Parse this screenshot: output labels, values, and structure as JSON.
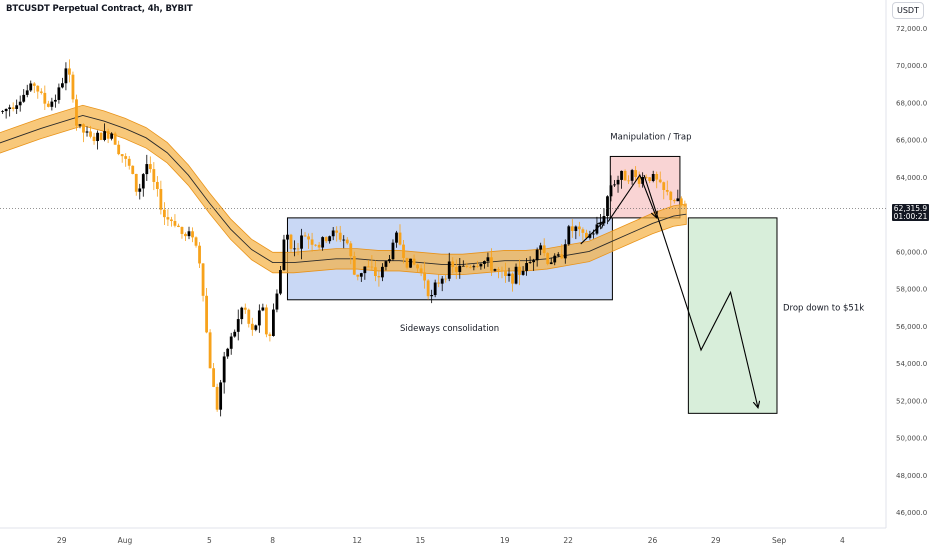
{
  "title": "BTCUSDT Perpetual Contract, 4h, BYBIT",
  "currency_label": "USDT",
  "last_price_label": "62,315.9",
  "countdown_label": "01:00:21",
  "colors": {
    "candle_up": "#000000",
    "candle_down": "#f7a21b",
    "band_fill": "#f5b042",
    "band_edge": "#e8931a",
    "range_box": "#c9d8f5",
    "trap_box": "#f9d4d4",
    "target_box": "#d8eeda",
    "axis_text": "#4a4a4a"
  },
  "chart_data": {
    "type": "candlestick",
    "ylim": [
      45500,
      73000
    ],
    "y_ticks": [
      46000,
      48000,
      50000,
      52000,
      54000,
      56000,
      58000,
      60000,
      62000,
      64000,
      66000,
      68000,
      70000,
      72000
    ],
    "y_tick_labels": [
      "46,000.0",
      "48,000.0",
      "50,000.0",
      "52,000.0",
      "54,000.0",
      "56,000.0",
      "58,000.0",
      "60,000.0",
      "62,000.0",
      "64,000.0",
      "66,000.0",
      "68,000.0",
      "70,000.0",
      "72,000.0"
    ],
    "x_ticks": [
      {
        "label": "29",
        "day": -3
      },
      {
        "label": "Aug",
        "day": 0
      },
      {
        "label": "5",
        "day": 4
      },
      {
        "label": "8",
        "day": 7
      },
      {
        "label": "12",
        "day": 11
      },
      {
        "label": "15",
        "day": 14
      },
      {
        "label": "19",
        "day": 18
      },
      {
        "label": "22",
        "day": 21
      },
      {
        "label": "26",
        "day": 25
      },
      {
        "label": "29",
        "day": 28
      },
      {
        "label": "Sep",
        "day": 31
      },
      {
        "label": "4",
        "day": 34
      }
    ],
    "last_price": 62315.9,
    "anchors": [
      {
        "day": -5.8,
        "price": 67500
      },
      {
        "day": -5.0,
        "price": 68200
      },
      {
        "day": -4.3,
        "price": 69000
      },
      {
        "day": -3.7,
        "price": 67800
      },
      {
        "day": -3.2,
        "price": 68400
      },
      {
        "day": -2.8,
        "price": 69700
      },
      {
        "day": -2.5,
        "price": 68800
      },
      {
        "day": -2.3,
        "price": 66800
      },
      {
        "day": -1.6,
        "price": 66000
      },
      {
        "day": -0.6,
        "price": 66400
      },
      {
        "day": -0.3,
        "price": 65500
      },
      {
        "day": 0.3,
        "price": 64300
      },
      {
        "day": 0.6,
        "price": 63000
      },
      {
        "day": 1.0,
        "price": 64800
      },
      {
        "day": 1.4,
        "price": 63500
      },
      {
        "day": 1.9,
        "price": 61800
      },
      {
        "day": 2.4,
        "price": 61600
      },
      {
        "day": 2.8,
        "price": 60700
      },
      {
        "day": 3.2,
        "price": 61000
      },
      {
        "day": 3.6,
        "price": 59200
      },
      {
        "day": 3.95,
        "price": 54500
      },
      {
        "day": 4.15,
        "price": 53000
      },
      {
        "day": 4.35,
        "price": 51500
      },
      {
        "day": 4.6,
        "price": 53500
      },
      {
        "day": 4.9,
        "price": 55000
      },
      {
        "day": 5.3,
        "price": 56000
      },
      {
        "day": 5.6,
        "price": 57200
      },
      {
        "day": 6.0,
        "price": 55500
      },
      {
        "day": 6.5,
        "price": 57000
      },
      {
        "day": 6.8,
        "price": 55000
      },
      {
        "day": 7.1,
        "price": 57300
      },
      {
        "day": 7.4,
        "price": 59200
      },
      {
        "day": 7.6,
        "price": 61200
      },
      {
        "day": 8.0,
        "price": 60000
      },
      {
        "day": 8.5,
        "price": 60900
      },
      {
        "day": 9.2,
        "price": 60300
      },
      {
        "day": 9.8,
        "price": 61000
      },
      {
        "day": 10.5,
        "price": 60600
      },
      {
        "day": 10.9,
        "price": 58600
      },
      {
        "day": 11.4,
        "price": 59200
      },
      {
        "day": 12.0,
        "price": 58600
      },
      {
        "day": 12.5,
        "price": 59700
      },
      {
        "day": 12.9,
        "price": 60900
      },
      {
        "day": 13.3,
        "price": 59500
      },
      {
        "day": 13.8,
        "price": 59200
      },
      {
        "day": 14.2,
        "price": 58600
      },
      {
        "day": 14.5,
        "price": 57400
      },
      {
        "day": 14.8,
        "price": 58300
      },
      {
        "day": 15.3,
        "price": 59100
      },
      {
        "day": 15.8,
        "price": 59000
      },
      {
        "day": 16.4,
        "price": 59300
      },
      {
        "day": 17.0,
        "price": 59500
      },
      {
        "day": 17.6,
        "price": 59000
      },
      {
        "day": 18.0,
        "price": 58500
      },
      {
        "day": 18.6,
        "price": 58800
      },
      {
        "day": 19.3,
        "price": 59500
      },
      {
        "day": 19.6,
        "price": 60700
      },
      {
        "day": 20.0,
        "price": 59500
      },
      {
        "day": 20.6,
        "price": 59600
      },
      {
        "day": 21.0,
        "price": 61100
      },
      {
        "day": 21.4,
        "price": 61200
      },
      {
        "day": 21.7,
        "price": 60700
      },
      {
        "day": 22.1,
        "price": 60900
      },
      {
        "day": 22.6,
        "price": 61600
      },
      {
        "day": 23.0,
        "price": 63600
      },
      {
        "day": 23.5,
        "price": 64000
      },
      {
        "day": 24.0,
        "price": 64200
      },
      {
        "day": 24.3,
        "price": 63800
      },
      {
        "day": 24.7,
        "price": 64100
      },
      {
        "day": 25.1,
        "price": 63900
      },
      {
        "day": 25.5,
        "price": 63200
      },
      {
        "day": 25.9,
        "price": 62900
      },
      {
        "day": 26.3,
        "price": 62500
      },
      {
        "day": 26.6,
        "price": 62316
      }
    ],
    "moving_average": [
      {
        "day": -6,
        "price": 65800
      },
      {
        "day": -4,
        "price": 66600
      },
      {
        "day": -2,
        "price": 67300
      },
      {
        "day": -1,
        "price": 67000
      },
      {
        "day": 0,
        "price": 66600
      },
      {
        "day": 1,
        "price": 66100
      },
      {
        "day": 2,
        "price": 65300
      },
      {
        "day": 3,
        "price": 64100
      },
      {
        "day": 4,
        "price": 62600
      },
      {
        "day": 5,
        "price": 61200
      },
      {
        "day": 6,
        "price": 60100
      },
      {
        "day": 7,
        "price": 59400
      },
      {
        "day": 8,
        "price": 59400
      },
      {
        "day": 9,
        "price": 59500
      },
      {
        "day": 10,
        "price": 59600
      },
      {
        "day": 11,
        "price": 59600
      },
      {
        "day": 12,
        "price": 59500
      },
      {
        "day": 13,
        "price": 59500
      },
      {
        "day": 14,
        "price": 59400
      },
      {
        "day": 15,
        "price": 59300
      },
      {
        "day": 16,
        "price": 59300
      },
      {
        "day": 17,
        "price": 59400
      },
      {
        "day": 18,
        "price": 59500
      },
      {
        "day": 19,
        "price": 59500
      },
      {
        "day": 20,
        "price": 59600
      },
      {
        "day": 21,
        "price": 59800
      },
      {
        "day": 22,
        "price": 60000
      },
      {
        "day": 23,
        "price": 60500
      },
      {
        "day": 24,
        "price": 61000
      },
      {
        "day": 25,
        "price": 61500
      },
      {
        "day": 26,
        "price": 61900
      },
      {
        "day": 26.6,
        "price": 62000
      }
    ],
    "band_width": 1100,
    "annotations": {
      "range_box": {
        "day_start": 7.7,
        "day_end": 23.1,
        "price_low": 57400,
        "price_high": 61800,
        "label": "Sideways consolidation"
      },
      "trap_box": {
        "day_start": 23.0,
        "day_end": 26.3,
        "price_low": 61800,
        "price_high": 65100,
        "label": "Manipulation / Trap"
      },
      "target_box": {
        "day_start": 26.7,
        "day_end": 30.9,
        "price_low": 51300,
        "price_high": 61800,
        "label": "Drop down to $51k"
      },
      "path_up": [
        {
          "day": 21.6,
          "price": 60400
        },
        {
          "day": 22.7,
          "price": 61600
        }
      ],
      "path_trap": [
        {
          "day": 22.9,
          "price": 61600
        },
        {
          "day": 24.4,
          "price": 64100
        },
        {
          "day": 25.2,
          "price": 61800
        }
      ],
      "path_drop": [
        {
          "day": 24.6,
          "price": 64100
        },
        {
          "day": 27.3,
          "price": 54700
        },
        {
          "day": 28.7,
          "price": 57800
        },
        {
          "day": 30.0,
          "price": 51600
        }
      ]
    }
  }
}
